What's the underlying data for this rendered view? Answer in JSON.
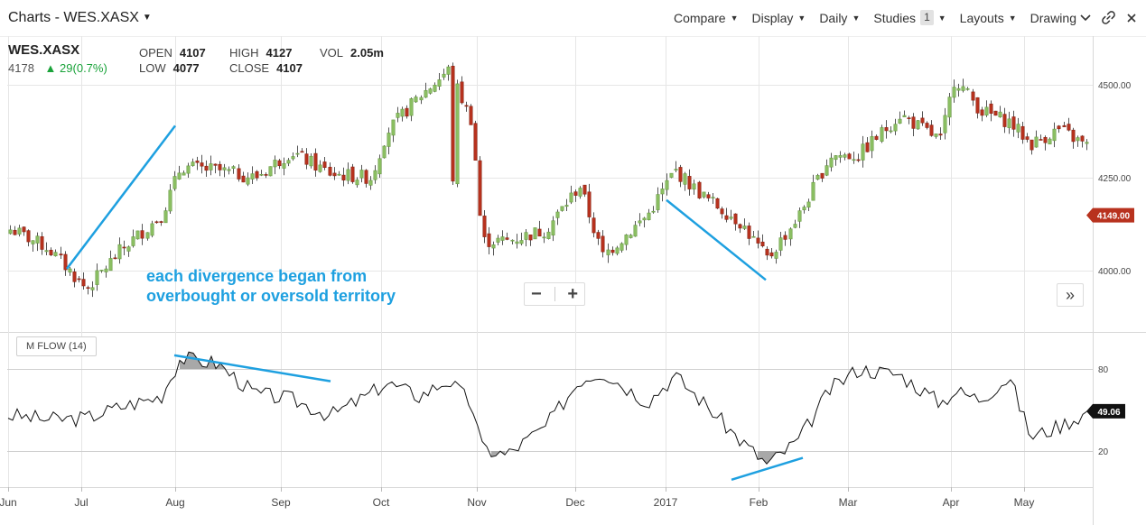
{
  "header": {
    "title": "Charts - WES.XASX",
    "menu": [
      {
        "label": "Compare"
      },
      {
        "label": "Display"
      },
      {
        "label": "Daily"
      },
      {
        "label": "Studies",
        "badge": "1"
      },
      {
        "label": "Layouts"
      },
      {
        "label": "Drawing"
      }
    ]
  },
  "quote": {
    "symbol": "WES.XASX",
    "last": "4178",
    "change": "29(0.7%)",
    "open_label": "OPEN",
    "open": "4107",
    "high_label": "HIGH",
    "high": "4127",
    "vol_label": "VOL",
    "vol": "2.05m",
    "low_label": "LOW",
    "low": "4077",
    "close_label": "CLOSE",
    "close": "4107"
  },
  "annotation": {
    "line1": "each divergence began from",
    "line2": "overbought or oversold territory"
  },
  "indicator": {
    "label": "M FLOW (14)"
  },
  "colors": {
    "up": "#8cc063",
    "down": "#b8321e",
    "annotation": "#1ea0e0",
    "price_tag": "#b8321e",
    "mflow_tag": "#111111",
    "grid": "#e6e6e6"
  },
  "icons": {
    "zoom_out": "minus-icon",
    "zoom_in": "plus-icon",
    "home": "double-chevron-right-icon",
    "link": "link-icon",
    "close": "close-icon"
  },
  "chart_data": [
    {
      "type": "candlestick",
      "series": "WES.XASX daily",
      "y_ticks": [
        "4500.00",
        "4250.00",
        "4000.00"
      ],
      "ylim": [
        3850,
        4600
      ],
      "x_ticks": [
        "Jun",
        "Jul",
        "Aug",
        "Sep",
        "Oct",
        "Nov",
        "Dec",
        "2017",
        "Feb",
        "Mar",
        "Apr",
        "May"
      ],
      "current_price": "4149.00",
      "close_path": [
        [
          "Jun",
          4110
        ],
        [
          "Jun",
          4060
        ],
        [
          "Jul",
          3950
        ],
        [
          "Jul",
          4050
        ],
        [
          "Jul",
          4150
        ],
        [
          "Aug",
          4280
        ],
        [
          "Aug",
          4270
        ],
        [
          "Aug",
          4250
        ],
        [
          "Sep",
          4320
        ],
        [
          "Sep",
          4260
        ],
        [
          "Sep",
          4250
        ],
        [
          "Oct",
          4370
        ],
        [
          "Oct",
          4470
        ],
        [
          "Oct",
          4540
        ],
        [
          "Oct",
          4400
        ],
        [
          "Nov",
          4080
        ],
        [
          "Nov",
          4080
        ],
        [
          "Nov",
          4110
        ],
        [
          "Dec",
          4230
        ],
        [
          "Dec",
          4040
        ],
        [
          "Dec",
          4150
        ],
        [
          "2017",
          4270
        ],
        [
          "2017",
          4200
        ],
        [
          "2017",
          4130
        ],
        [
          "Feb",
          4030
        ],
        [
          "Feb",
          4150
        ],
        [
          "Feb",
          4310
        ],
        [
          "Mar",
          4310
        ],
        [
          "Mar",
          4420
        ],
        [
          "Mar",
          4350
        ],
        [
          "Apr",
          4520
        ],
        [
          "Apr",
          4430
        ],
        [
          "Apr",
          4400
        ],
        [
          "May",
          4340
        ],
        [
          "May",
          4380
        ],
        [
          "May",
          4330
        ]
      ]
    },
    {
      "type": "line",
      "series": "M FLOW (14)",
      "y_ticks": [
        "80",
        "20"
      ],
      "ylim": [
        0,
        100
      ],
      "x_ticks": [
        "Jun",
        "Jul",
        "Aug",
        "Sep",
        "Oct",
        "Nov",
        "Dec",
        "2017",
        "Feb",
        "Mar",
        "Apr",
        "May"
      ],
      "current_value": "49.06",
      "values": [
        [
          "Jun",
          46
        ],
        [
          "Jun",
          43
        ],
        [
          "Jul",
          44
        ],
        [
          "Jul",
          52
        ],
        [
          "Jul",
          60
        ],
        [
          "Aug",
          88
        ],
        [
          "Aug",
          84
        ],
        [
          "Aug",
          62
        ],
        [
          "Sep",
          58
        ],
        [
          "Sep",
          46
        ],
        [
          "Sep",
          62
        ],
        [
          "Oct",
          70
        ],
        [
          "Oct",
          60
        ],
        [
          "Oct",
          72
        ],
        [
          "Oct",
          54
        ],
        [
          "Nov",
          22
        ],
        [
          "Nov",
          17
        ],
        [
          "Nov",
          38
        ],
        [
          "Dec",
          72
        ],
        [
          "Dec",
          78
        ],
        [
          "Dec",
          56
        ],
        [
          "2017",
          75
        ],
        [
          "2017",
          56
        ],
        [
          "2017",
          28
        ],
        [
          "Feb",
          10
        ],
        [
          "Feb",
          28
        ],
        [
          "Feb",
          65
        ],
        [
          "Mar",
          80
        ],
        [
          "Mar",
          76
        ],
        [
          "Mar",
          55
        ],
        [
          "Apr",
          64
        ],
        [
          "Apr",
          58
        ],
        [
          "Apr",
          74
        ],
        [
          "May",
          30
        ],
        [
          "May",
          38
        ],
        [
          "May",
          49
        ]
      ]
    }
  ]
}
